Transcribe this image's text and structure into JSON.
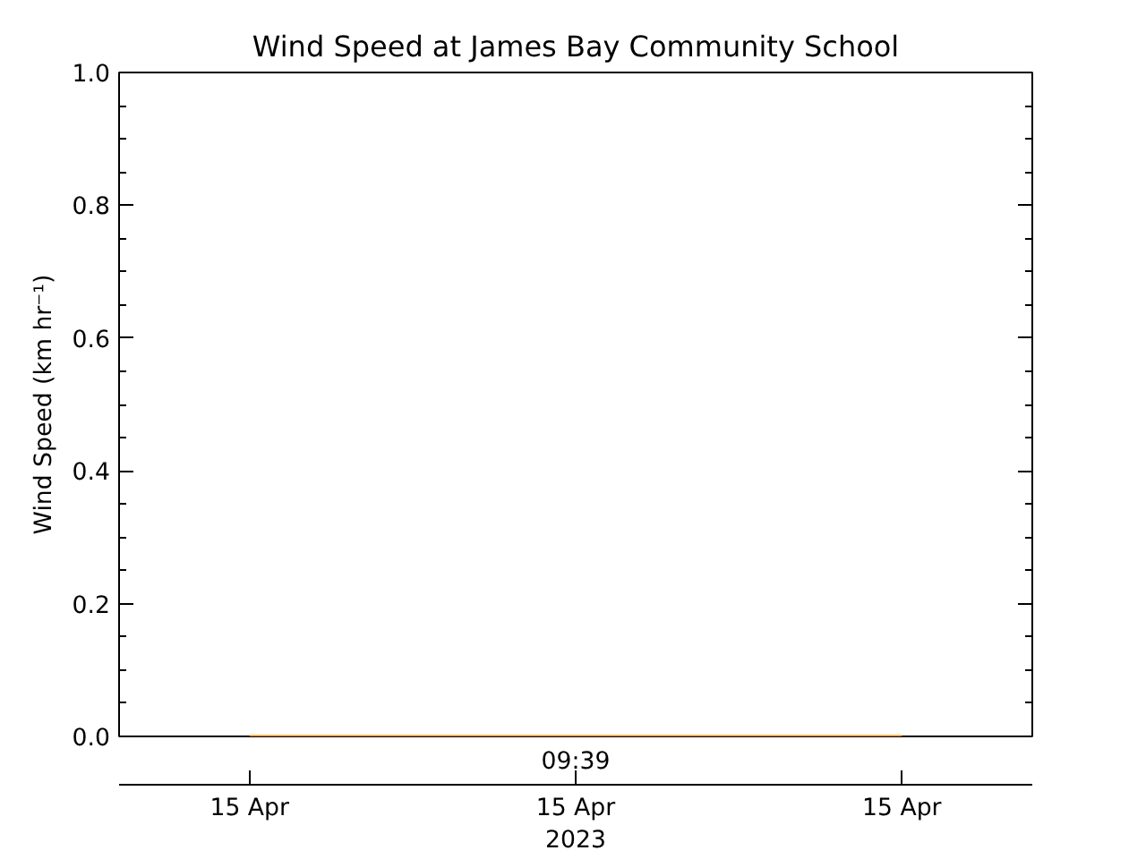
{
  "chart_data": {
    "type": "line",
    "title": "Wind Speed at James Bay Community School",
    "ylabel": "Wind Speed (km hr⁻¹)",
    "categories": [
      "15 Apr",
      "15 Apr\n2023",
      "15 Apr"
    ],
    "series": [
      {
        "color": "#ff8c00",
        "values": [
          0,
          0,
          0
        ]
      }
    ],
    "ylim": [
      0,
      1
    ],
    "yticks": [
      {
        "value": 0,
        "label": "0.0"
      },
      {
        "value": 0.2,
        "label": "0.2"
      },
      {
        "value": 0.4,
        "label": "0.4"
      },
      {
        "value": 0.6,
        "label": "0.6"
      },
      {
        "value": 0.8,
        "label": "0.8"
      },
      {
        "value": 1,
        "label": "1.0"
      }
    ],
    "annotations": [
      "09:39"
    ]
  }
}
